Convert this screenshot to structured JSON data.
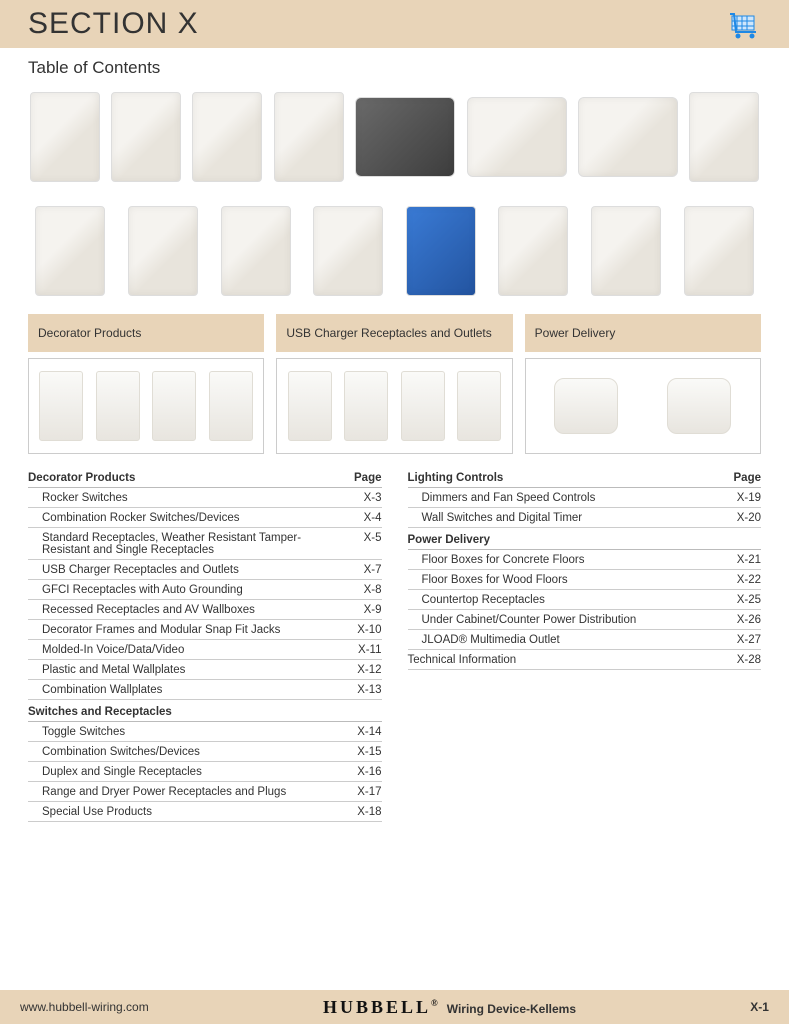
{
  "header": {
    "section_title": "SECTION X",
    "toc_title": "Table of Contents"
  },
  "colors": {
    "tan_strip": "#e8d4b8",
    "rule": "#cccccc",
    "text": "#333333",
    "cart_blue": "#1e88e5"
  },
  "categories": [
    {
      "label": "Decorator Products"
    },
    {
      "label": "USB Charger Receptacles and Outlets"
    },
    {
      "label": "Power Delivery"
    }
  ],
  "toc_left": [
    {
      "type": "heading",
      "label": "Decorator Products",
      "page": "Page"
    },
    {
      "type": "row",
      "label": "Rocker Switches",
      "page": "X-3"
    },
    {
      "type": "row",
      "label": "Combination Rocker Switches/Devices",
      "page": "X-4"
    },
    {
      "type": "row",
      "label": "Standard Receptacles, Weather Resistant Tamper-Resistant and Single Receptacles",
      "page": "X-5"
    },
    {
      "type": "row",
      "label": "USB Charger Receptacles and Outlets",
      "page": "X-7"
    },
    {
      "type": "row",
      "label": "GFCI Receptacles with Auto Grounding",
      "page": "X-8"
    },
    {
      "type": "row",
      "label": "Recessed Receptacles and AV Wallboxes",
      "page": "X-9"
    },
    {
      "type": "row",
      "label": "Decorator Frames and Modular Snap Fit Jacks",
      "page": "X-10"
    },
    {
      "type": "row",
      "label": "Molded-In Voice/Data/Video",
      "page": "X-11"
    },
    {
      "type": "row",
      "label": "Plastic and Metal Wallplates",
      "page": "X-12"
    },
    {
      "type": "row",
      "label": "Combination Wallplates",
      "page": "X-13"
    },
    {
      "type": "subheading",
      "label": "Switches and Receptacles"
    },
    {
      "type": "row",
      "label": "Toggle Switches",
      "page": "X-14"
    },
    {
      "type": "row",
      "label": "Combination Switches/Devices",
      "page": "X-15"
    },
    {
      "type": "row",
      "label": "Duplex and Single Receptacles",
      "page": "X-16"
    },
    {
      "type": "row",
      "label": "Range and Dryer Power Receptacles and Plugs",
      "page": "X-17"
    },
    {
      "type": "row",
      "label": "Special Use Products",
      "page": "X-18"
    }
  ],
  "toc_right": [
    {
      "type": "heading",
      "label": "Lighting Controls",
      "page": "Page"
    },
    {
      "type": "row",
      "label": "Dimmers and Fan Speed Controls",
      "page": "X-19"
    },
    {
      "type": "row",
      "label": "Wall Switches and Digital Timer",
      "page": "X-20"
    },
    {
      "type": "subheading",
      "label": "Power Delivery"
    },
    {
      "type": "row",
      "label": "Floor Boxes for Concrete Floors",
      "page": "X-21"
    },
    {
      "type": "row",
      "label": "Floor Boxes for Wood Floors",
      "page": "X-22"
    },
    {
      "type": "row",
      "label": "Countertop Receptacles",
      "page": "X-25"
    },
    {
      "type": "row",
      "label": "Under Cabinet/Counter Power Distribution",
      "page": "X-26"
    },
    {
      "type": "row",
      "label": "JLOAD® Multimedia Outlet",
      "page": "X-27"
    },
    {
      "type": "row_noindent",
      "label": "Technical Information",
      "page": "X-28"
    }
  ],
  "footer": {
    "url": "www.hubbell-wiring.com",
    "brand": "HUBBELL",
    "brand_suffix": "Wiring Device-Kellems",
    "page_num": "X-1"
  }
}
